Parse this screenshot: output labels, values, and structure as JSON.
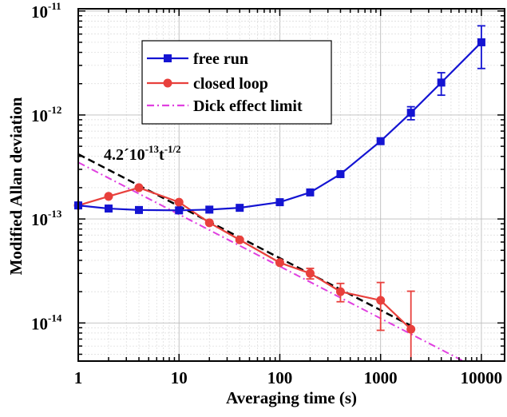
{
  "chart_data": {
    "type": "line",
    "xlabel": "Averaging time (s)",
    "ylabel": "Modified Allan deviation",
    "xscale": "log",
    "yscale": "log",
    "xlim": [
      1,
      17000
    ],
    "ylim": [
      4.3e-15,
      1.05e-11
    ],
    "grid": true,
    "legend_position": "top-left",
    "x_ticks": [
      {
        "v": 1,
        "label": "1"
      },
      {
        "v": 10,
        "label": "10"
      },
      {
        "v": 100,
        "label": "100"
      },
      {
        "v": 1000,
        "label": "1000"
      },
      {
        "v": 10000,
        "label": "10000"
      }
    ],
    "y_ticks": [
      {
        "v": 1e-14,
        "base": "10",
        "exp": "-14"
      },
      {
        "v": 1e-13,
        "base": "10",
        "exp": "-13"
      },
      {
        "v": 1e-12,
        "base": "10",
        "exp": "-12"
      },
      {
        "v": 1e-11,
        "base": "10",
        "exp": "-11"
      }
    ],
    "series": [
      {
        "name": "free run",
        "color": "#1414d2",
        "marker": "square",
        "x": [
          1,
          2,
          4,
          10,
          20,
          40,
          100,
          200,
          400,
          1000,
          2000,
          4000,
          10000
        ],
        "y": [
          1.35e-13,
          1.26e-13,
          1.22e-13,
          1.21e-13,
          1.23e-13,
          1.28e-13,
          1.45e-13,
          1.8e-13,
          2.7e-13,
          5.6e-13,
          1.05e-12,
          2.05e-12,
          5e-12
        ],
        "err": [
          0,
          0,
          0,
          0,
          0,
          0,
          0,
          0,
          0,
          0,
          1.5e-13,
          5e-13,
          2.2e-12
        ]
      },
      {
        "name": "closed loop",
        "color": "#e8403c",
        "marker": "circle",
        "x": [
          1,
          2,
          4,
          10,
          20,
          40,
          100,
          200,
          400,
          1000,
          2000
        ],
        "y": [
          1.35e-13,
          1.65e-13,
          2e-13,
          1.45e-13,
          9.2e-14,
          6.3e-14,
          3.8e-14,
          3e-14,
          2e-14,
          1.65e-14,
          8.7e-15
        ],
        "err": [
          0,
          0,
          0,
          0,
          0,
          0,
          0,
          3.5e-15,
          4e-15,
          8e-15,
          1.15e-14
        ]
      },
      {
        "name": "Dick effect limit",
        "color": "#e040e0",
        "style": "dash-dot",
        "x": [
          1,
          10000
        ],
        "y": [
          3.5e-13,
          3.5e-15
        ]
      }
    ],
    "fit_line": {
      "color": "#000000",
      "style": "dashed",
      "x": [
        1,
        2000
      ],
      "y": [
        4.2e-13,
        9.4e-15
      ]
    },
    "annotation": {
      "main": "4.2´10",
      "exp1": "-13",
      "t": "t",
      "exp2": "-1/2"
    }
  }
}
